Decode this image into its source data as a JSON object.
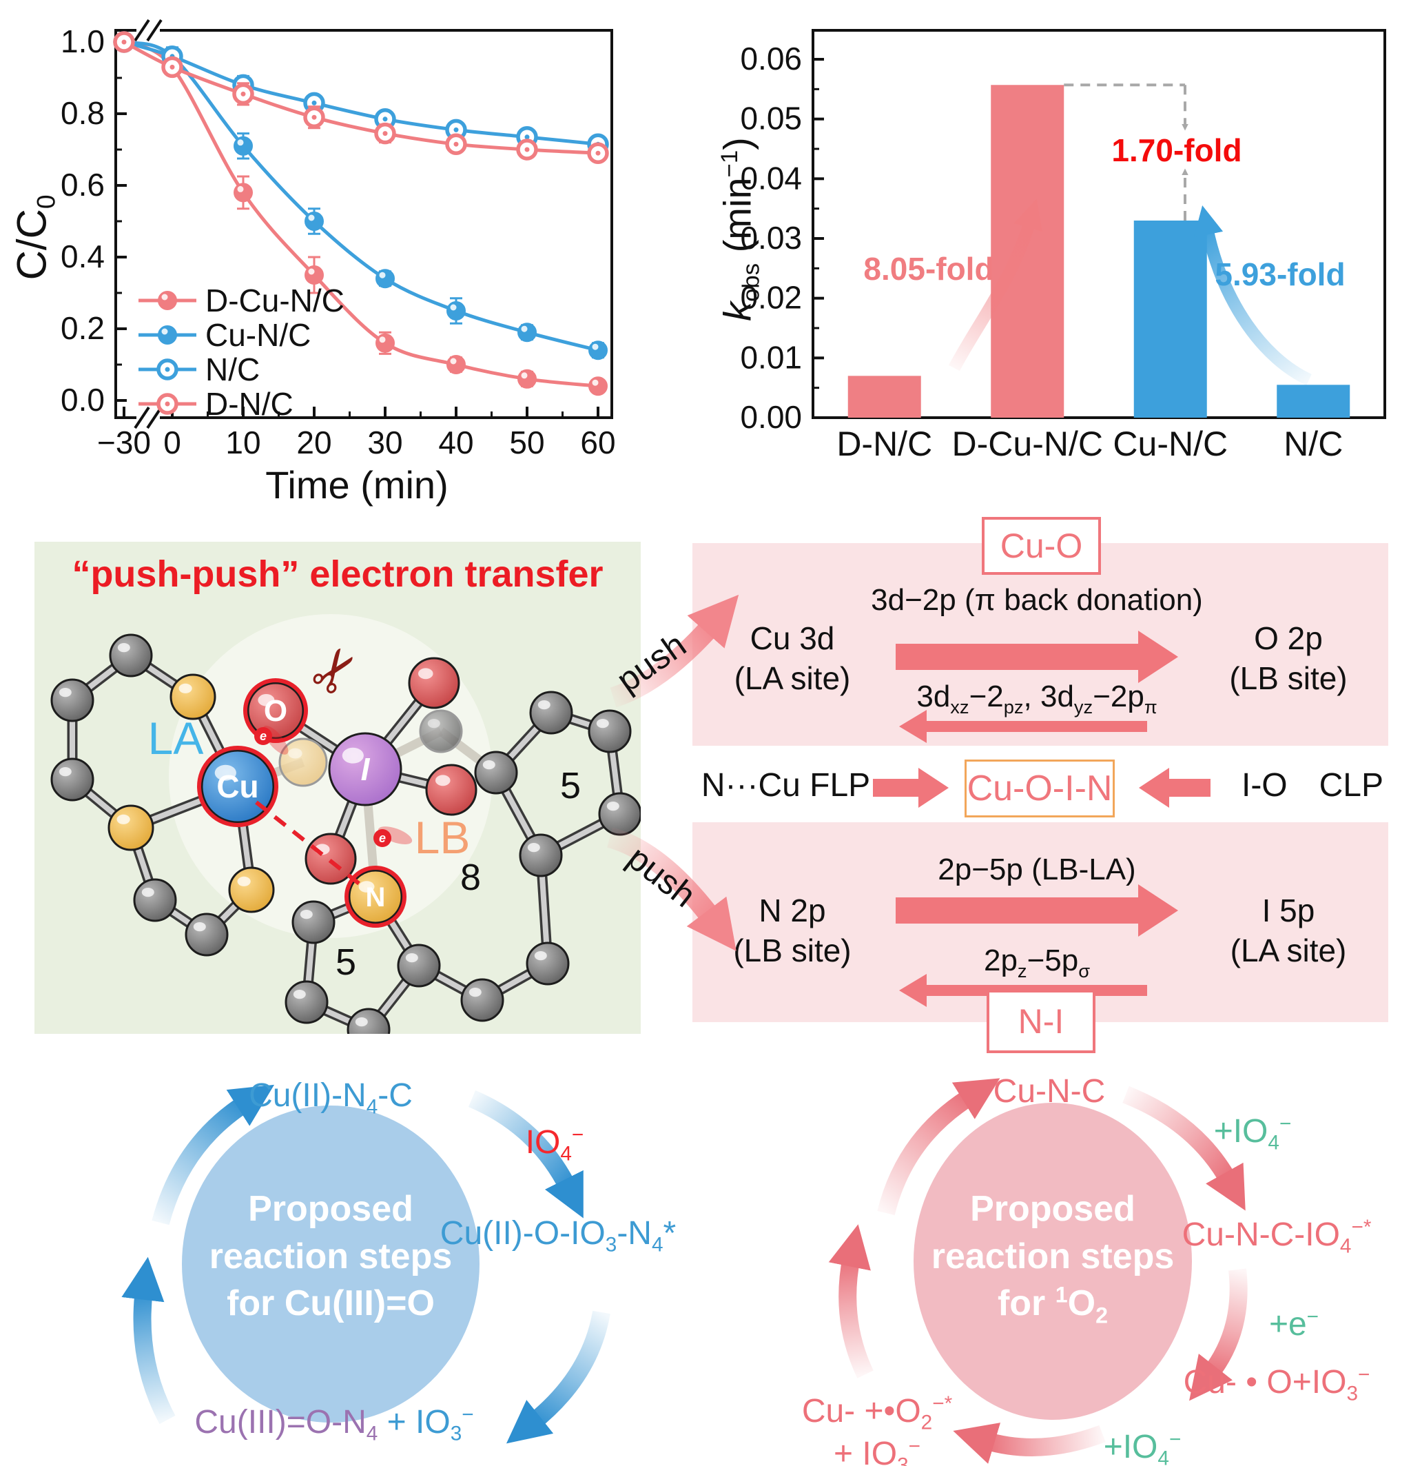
{
  "colors": {
    "salmon": "#F07D81",
    "blue": "#3DA0DC",
    "bright_red": "#F40B0B",
    "title_red": "#EC1C24",
    "panel_pink": "#FAE3E5",
    "panel_green": "#E9F0E0",
    "pink_arrow": "#F0767C",
    "orange_box": "#F2A65A",
    "cycle_blue_fill": "#A9CDEA",
    "cycle_pink_fill": "#F2BBC2",
    "label_blue": "#3D9BD3",
    "label_purple": "#9B72B0",
    "label_pink": "#ED7079",
    "label_green": "#57BE9C",
    "io4_red": "#F5282D"
  },
  "chart_data": [
    {
      "type": "line",
      "xlabel": "Time (min)",
      "ylabel_parts": [
        {
          "t": "t",
          "v": "C/C"
        },
        {
          "t": "sub",
          "v": "0"
        }
      ],
      "x": [
        -30,
        0,
        10,
        20,
        30,
        40,
        50,
        60
      ],
      "xticks": [
        -30,
        0,
        10,
        20,
        30,
        40,
        50,
        60
      ],
      "yticks": [
        0,
        0.2,
        0.4,
        0.6,
        0.8,
        1
      ],
      "ylim": [
        0,
        1.05
      ],
      "xaxis_break": true,
      "grid": false,
      "legend_position": "lower-left",
      "series": [
        {
          "name": "D-Cu-N/C",
          "color": "#F07D81",
          "marker": "filled",
          "values": [
            1,
            0.93,
            0.58,
            0.35,
            0.16,
            0.1,
            0.06,
            0.04
          ],
          "errors": [
            0.015,
            0.02,
            0.045,
            0.05,
            0.03,
            0.02,
            0.02,
            0.015
          ]
        },
        {
          "name": "Cu-N/C",
          "color": "#3DA0DC",
          "marker": "filled",
          "values": [
            1,
            0.96,
            0.71,
            0.5,
            0.34,
            0.25,
            0.19,
            0.14
          ],
          "errors": [
            0.015,
            0.025,
            0.035,
            0.035,
            0.02,
            0.035,
            0.02,
            0.02
          ]
        },
        {
          "name": "N/C",
          "color": "#3DA0DC",
          "marker": "open",
          "values": [
            1,
            0.96,
            0.88,
            0.83,
            0.785,
            0.755,
            0.735,
            0.715
          ],
          "errors": [
            0.01,
            0.02,
            0.025,
            0.02,
            0.015,
            0.015,
            0.02,
            0.015
          ]
        },
        {
          "name": "D-N/C",
          "color": "#F07D81",
          "marker": "open",
          "values": [
            1,
            0.93,
            0.855,
            0.79,
            0.745,
            0.715,
            0.7,
            0.69
          ],
          "errors": [
            0.01,
            0.02,
            0.03,
            0.03,
            0.025,
            0.015,
            0.01,
            0.01
          ]
        }
      ]
    },
    {
      "type": "bar",
      "categories": [
        "D-N/C",
        "D-Cu-N/C",
        "Cu-N/C",
        "N/C"
      ],
      "values": [
        0.007,
        0.0557,
        0.033,
        0.0055
      ],
      "bar_colors": [
        "#EF7F84",
        "#EF7F84",
        "#3DA0DC",
        "#3DA0DC"
      ],
      "ylabel_parts": [
        {
          "t": "i",
          "v": "k"
        },
        {
          "t": "sub",
          "v": "obs"
        },
        {
          "t": "t",
          "v": " (min"
        },
        {
          "t": "sup",
          "v": "−1"
        },
        {
          "t": "t",
          "v": ")"
        }
      ],
      "yticks": [
        0,
        0.01,
        0.02,
        0.03,
        0.04,
        0.05,
        0.06
      ],
      "ylim": [
        0,
        0.065
      ],
      "annotations": [
        {
          "text": "8.05-fold",
          "color": "#F07D81"
        },
        {
          "text": "1.70-fold",
          "color": "#F40B0B"
        },
        {
          "text": "5.93-fold",
          "color": "#3DA0DC"
        }
      ]
    }
  ],
  "mechanism": {
    "title": "“push-push” electron transfer",
    "push": "push",
    "molecule": {
      "la": "LA",
      "lb": "LB",
      "cu": "Cu",
      "o": "O",
      "i": "I",
      "n": "N",
      "five_right": "5",
      "five_bottom": "5",
      "eight": "8",
      "electron": "e",
      "scissors": "✂"
    },
    "cu_o_box": "Cu-O",
    "panel_cuo": {
      "left_line1": "Cu 3d",
      "left_line2": "(LA site)",
      "right_line1": "O 2p",
      "right_line2": "(LB site)",
      "forward_label": "3d−2p (π back donation)",
      "back_label_parts": [
        {
          "t": "t",
          "v": "3d"
        },
        {
          "t": "sub",
          "v": "xz"
        },
        {
          "t": "t",
          "v": "−2"
        },
        {
          "t": "sub",
          "v": "pz"
        },
        {
          "t": "t",
          "v": ", 3d"
        },
        {
          "t": "sub",
          "v": "yz"
        },
        {
          "t": "t",
          "v": "−2p"
        },
        {
          "t": "sub",
          "v": "π"
        }
      ]
    },
    "middle": {
      "left": "N···Cu FLP",
      "box": "Cu-O-I-N",
      "right_a": "I-O",
      "right_b": "CLP"
    },
    "panel_ni": {
      "left_line1": "N 2p",
      "left_line2": "(LB site)",
      "right_line1": "I 5p",
      "right_line2": "(LA site)",
      "forward_label": "2p−5p (LB-LA)",
      "back_label_parts": [
        {
          "t": "t",
          "v": "2p"
        },
        {
          "t": "sub",
          "v": "z"
        },
        {
          "t": "t",
          "v": "−5p"
        },
        {
          "t": "sub",
          "v": "σ"
        }
      ]
    },
    "ni_box": "N-I"
  },
  "cycles": {
    "left": {
      "center_line1": "Proposed",
      "center_line2": "reaction steps",
      "center_line3": "for Cu(III)=O",
      "top_parts": [
        {
          "t": "t",
          "v": "Cu(II)-N"
        },
        {
          "t": "sub",
          "v": "4"
        },
        {
          "t": "t",
          "v": "-C"
        }
      ],
      "oxidant_parts": [
        {
          "t": "t",
          "v": "IO"
        },
        {
          "t": "sub",
          "v": "4"
        },
        {
          "t": "sup",
          "v": "−"
        }
      ],
      "right_parts": [
        {
          "t": "t",
          "v": "Cu(II)-O-IO"
        },
        {
          "t": "sub",
          "v": "3"
        },
        {
          "t": "t",
          "v": "-N"
        },
        {
          "t": "sub",
          "v": "4"
        },
        {
          "t": "t",
          "v": "*"
        }
      ],
      "bottom_main_parts": [
        {
          "t": "t",
          "v": "Cu(III)=O-N"
        },
        {
          "t": "sub",
          "v": "4"
        }
      ],
      "bottom_plus_parts": [
        {
          "t": "t",
          "v": "+ IO"
        },
        {
          "t": "sub",
          "v": "3"
        },
        {
          "t": "sup",
          "v": "−"
        }
      ]
    },
    "right": {
      "center_line1": "Proposed",
      "center_line2": "reaction steps",
      "center_line3_parts": [
        {
          "t": "t",
          "v": "for "
        },
        {
          "t": "sup",
          "v": "1"
        },
        {
          "t": "t",
          "v": "O"
        },
        {
          "t": "sub",
          "v": "2"
        }
      ],
      "top": "Cu-N-C",
      "step1_parts": [
        {
          "t": "t",
          "v": "+IO"
        },
        {
          "t": "sub",
          "v": "4"
        },
        {
          "t": "sup",
          "v": "−"
        }
      ],
      "right_parts": [
        {
          "t": "t",
          "v": "Cu-N-C-IO"
        },
        {
          "t": "sub",
          "v": "4"
        },
        {
          "t": "sup",
          "v": "−*"
        }
      ],
      "step2_parts": [
        {
          "t": "t",
          "v": "+e"
        },
        {
          "t": "sup",
          "v": "−"
        }
      ],
      "bottom_right_parts": [
        {
          "t": "t",
          "v": "Cu- • O+IO"
        },
        {
          "t": "sub",
          "v": "3"
        },
        {
          "t": "sup",
          "v": "−"
        }
      ],
      "step3_parts": [
        {
          "t": "t",
          "v": "+IO"
        },
        {
          "t": "sub",
          "v": "4"
        },
        {
          "t": "sup",
          "v": "−"
        }
      ],
      "bottom_left_line1_parts": [
        {
          "t": "t",
          "v": "Cu- +•O"
        },
        {
          "t": "sub",
          "v": "2"
        },
        {
          "t": "sup",
          "v": "−*"
        }
      ],
      "bottom_left_line2_parts": [
        {
          "t": "t",
          "v": "+ IO"
        },
        {
          "t": "sub",
          "v": "3"
        },
        {
          "t": "sup",
          "v": "−"
        }
      ]
    }
  }
}
